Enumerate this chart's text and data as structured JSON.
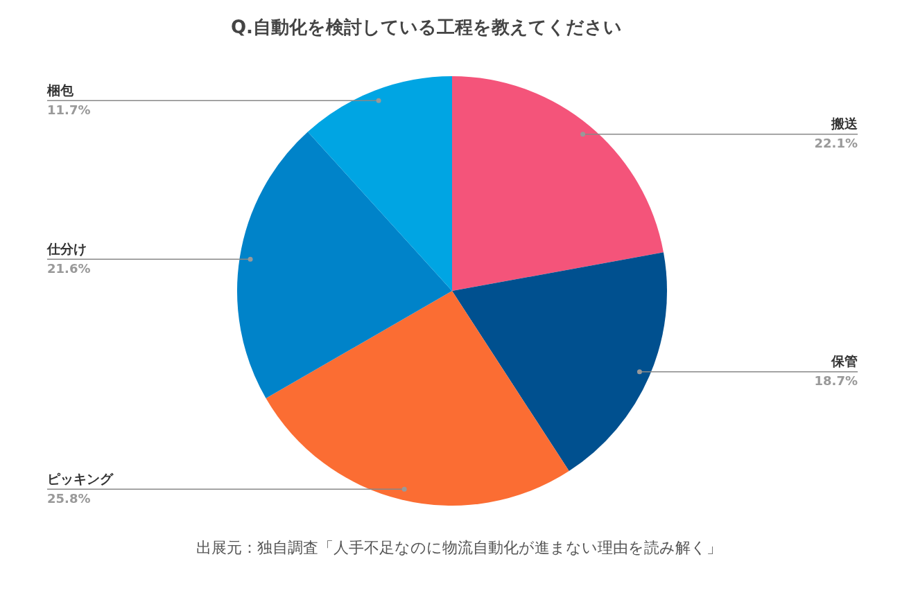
{
  "chart_data": {
    "type": "pie",
    "title": "Q.自動化を検討している工程を教えてください",
    "categories": [
      "搬送",
      "保管",
      "ピッキング",
      "仕分け",
      "梱包"
    ],
    "values": [
      22.1,
      18.7,
      25.8,
      21.6,
      11.7
    ],
    "value_labels": [
      "22.1%",
      "18.7%",
      "25.8%",
      "21.6%",
      "11.7%"
    ],
    "colors": [
      "#f4547a",
      "#00508f",
      "#fb6d33",
      "#0083c9",
      "#00a5e3"
    ],
    "legend": false,
    "annotations": [
      "出展元：独自調査「人手不足なのに物流自動化が進まない理由を読み解く」"
    ]
  }
}
